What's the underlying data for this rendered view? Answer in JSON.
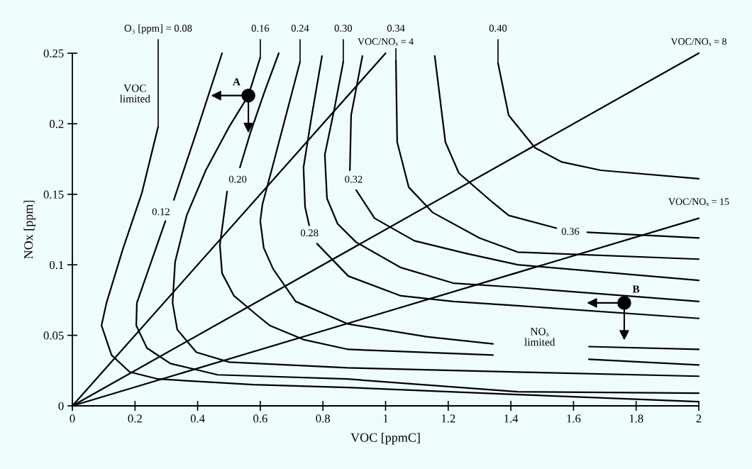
{
  "chart_data": {
    "type": "line",
    "xlabel": "VOC [ppmC]",
    "ylabel": "NOx [ppm]",
    "xlim": [
      0,
      2
    ],
    "xticks": [
      0,
      0.2,
      0.4,
      0.6,
      0.8,
      1,
      1.2,
      1.4,
      1.6,
      1.8,
      2
    ],
    "ylim": [
      0,
      0.25
    ],
    "yticks": [
      0,
      0.05,
      0.1,
      0.15,
      0.2,
      0.25
    ],
    "series": [
      {
        "color": "#000000",
        "x": [
          0.274,
          0.222,
          0.161,
          0.109,
          0.093,
          0.125,
          0.183,
          0.274,
          0.578,
          0.879,
          1.422,
          2
        ],
        "values": [
          0.198,
          0.151,
          0.111,
          0.073,
          0.057,
          0.036,
          0.024,
          0.019,
          0.015,
          0.013,
          0.008,
          0.003
        ]
      },
      {
        "color": "#000000",
        "x": [
          0.478,
          0.396,
          0.324,
          0.31,
          0.297,
          0.206,
          0.204,
          0.238,
          0.313,
          0.464,
          0.879,
          1.422,
          2
        ],
        "values": [
          0.25,
          0.194,
          0.146,
          null,
          0.131,
          0.073,
          0.057,
          0.041,
          0.03,
          0.022,
          0.019,
          0.01,
          0.009
        ]
      },
      {
        "color": "#000000",
        "x": [
          0.6,
          0.562,
          0.501,
          0.426,
          0.365,
          0.328,
          0.32,
          0.335,
          0.396,
          0.501,
          0.879,
          1.422,
          2
        ],
        "values": [
          0.247,
          0.22,
          0.198,
          0.167,
          0.135,
          0.102,
          0.073,
          0.054,
          0.038,
          0.031,
          0.027,
          0.024,
          0.021
        ]
      },
      {
        "color": "#000000",
        "x": [
          0.659,
          0.614,
          0.569,
          0.535,
          0.51,
          0.494,
          0.471,
          0.478,
          0.516,
          0.591,
          0.63,
          0.738,
          0.881,
          1.343,
          1.5,
          1.649,
          2
        ],
        "values": [
          0.25,
          0.223,
          0.194,
          0.169,
          null,
          0.152,
          0.114,
          0.094,
          0.078,
          0.064,
          0.057,
          0.047,
          0.04,
          0.036,
          null,
          0.033,
          0.029
        ]
      },
      {
        "color": "#000000",
        "x": [
          0.727,
          0.636,
          0.607,
          0.6,
          0.611,
          0.641,
          0.713,
          0.881,
          1.132,
          1.343,
          1.5,
          1.649,
          2
        ],
        "values": [
          0.244,
          0.167,
          0.143,
          0.131,
          0.112,
          0.097,
          0.074,
          0.058,
          0.049,
          0.044,
          null,
          0.042,
          0.04
        ]
      },
      {
        "color": "#000000",
        "x": [
          0.797,
          0.763,
          0.738,
          0.743,
          0.756,
          0.768,
          0.781,
          0.881,
          1.049,
          1.216,
          1.422,
          2
        ],
        "values": [
          0.248,
          0.204,
          0.169,
          0.141,
          0.128,
          null,
          0.115,
          0.092,
          0.078,
          0.074,
          0.071,
          0.062
        ]
      },
      {
        "color": "#000000",
        "x": [
          0.865,
          0.836,
          0.806,
          0.813,
          0.847,
          0.906,
          1.049,
          1.216,
          1.422,
          2
        ],
        "values": [
          0.244,
          0.21,
          0.178,
          0.147,
          0.129,
          0.116,
          0.098,
          0.087,
          0.084,
          0.074
        ]
      },
      {
        "color": "#000000",
        "x": [
          0.926,
          0.89,
          0.886,
          0.896,
          0.906,
          0.965,
          1.092,
          1.259,
          1.422,
          2
        ],
        "values": [
          0.248,
          0.206,
          0.167,
          null,
          0.153,
          0.133,
          0.117,
          0.108,
          0.1,
          0.089
        ]
      },
      {
        "color": "#000000",
        "x": [
          1.033,
          1.037,
          1.074,
          1.151,
          1.3,
          1.422,
          2
        ],
        "values": [
          0.245,
          0.187,
          0.155,
          0.137,
          0.119,
          0.109,
          0.104
        ]
      },
      {
        "color": "#000000",
        "x": [
          1.157,
          1.191,
          1.234,
          1.343,
          1.393,
          1.545,
          1.59,
          1.644,
          2
        ],
        "values": [
          0.248,
          0.187,
          0.165,
          0.144,
          0.135,
          0.126,
          null,
          0.123,
          0.119
        ]
      },
      {
        "color": "#000000",
        "x": [
          1.359,
          1.393,
          1.477,
          1.561,
          1.687,
          2
        ],
        "values": [
          0.243,
          0.206,
          0.183,
          0.173,
          0.167,
          0.161
        ]
      },
      {
        "name": "VOC/NOₓ = 4",
        "color": "#000000",
        "x": [
          0,
          1
        ],
        "values": [
          0,
          0.25
        ]
      },
      {
        "name": "VOC/NOₓ = 8",
        "color": "#000000",
        "x": [
          0,
          2
        ],
        "values": [
          0,
          0.25
        ]
      },
      {
        "name": "VOC/NOₓ = 15",
        "color": "#000000",
        "x": [
          0,
          2
        ],
        "values": [
          0,
          0.133
        ]
      },
      {
        "type": "scatter",
        "name": "A",
        "marker": "circle",
        "color": "#000000",
        "x": [
          0.562
        ],
        "values": [
          0.22
        ]
      },
      {
        "type": "scatter",
        "name": "B",
        "marker": "circle",
        "color": "#000000",
        "x": [
          1.762
        ],
        "values": [
          0.073
        ]
      }
    ],
    "annotations": [
      {
        "text": "O₃ [ppm] = 0.08",
        "x": 0.274,
        "y": 0.198
      },
      {
        "text": "0.16",
        "x": 0.6,
        "y": 0.247
      },
      {
        "text": "0.24",
        "x": 0.727,
        "y": 0.244
      },
      {
        "text": "0.30",
        "x": 0.865,
        "y": 0.244
      },
      {
        "text": "0.34",
        "x": 1.033,
        "y": 0.245
      },
      {
        "text": "0.40",
        "x": 1.359,
        "y": 0.243
      },
      {
        "text": "0.12",
        "x": 0.283,
        "y": 0.137
      },
      {
        "text": "0.20",
        "x": 0.528,
        "y": 0.16
      },
      {
        "text": "0.28",
        "x": 0.757,
        "y": 0.122
      },
      {
        "text": "0.32",
        "x": 0.898,
        "y": 0.16
      },
      {
        "text": "0.36",
        "x": 1.59,
        "y": 0.123
      },
      "VOC\nlimited",
      "NOₓ\nlimited"
    ]
  }
}
